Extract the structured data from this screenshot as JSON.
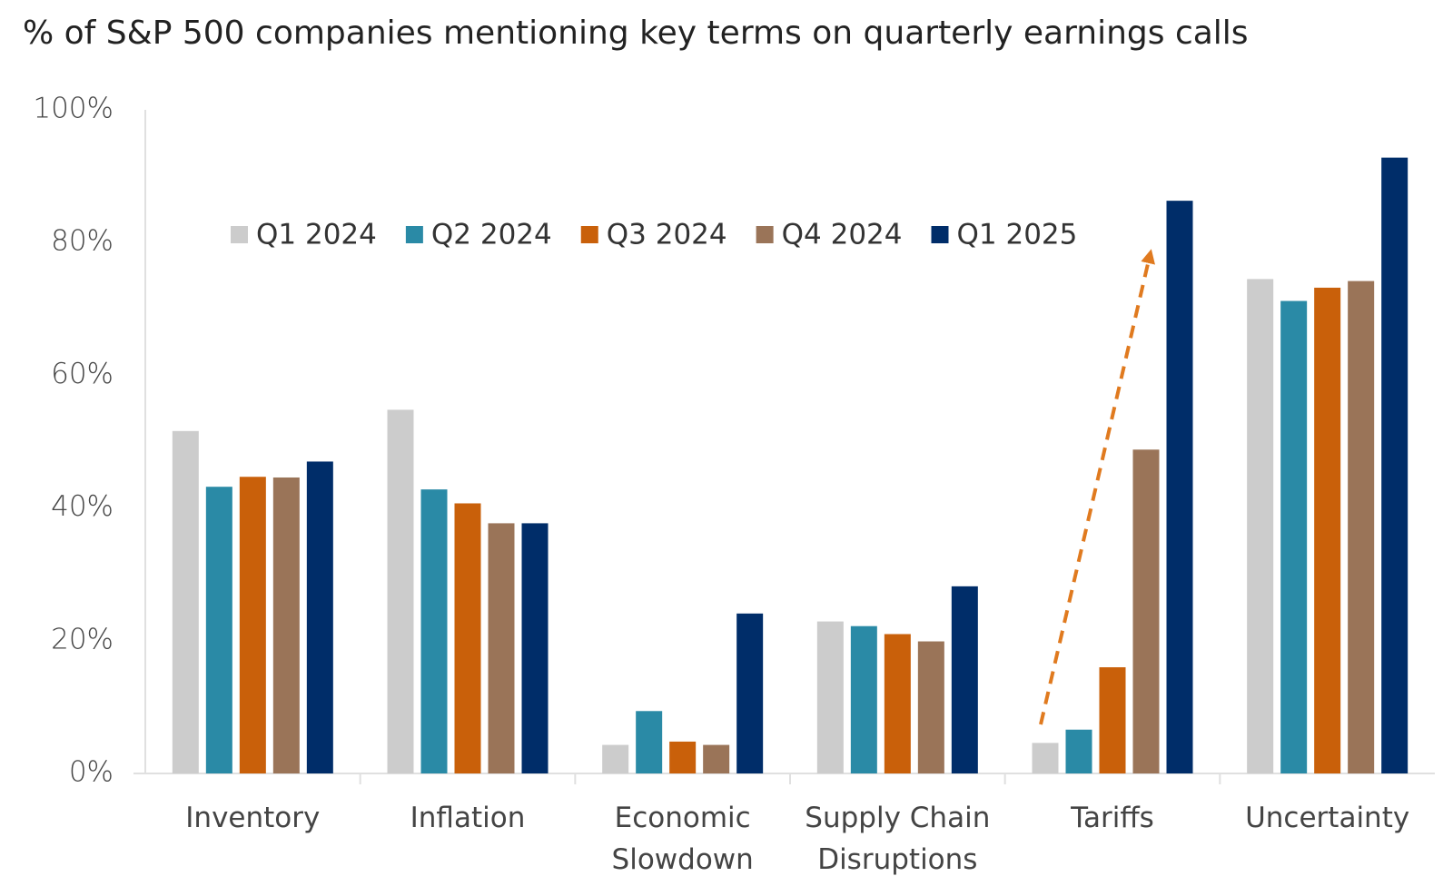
{
  "chart_data": {
    "type": "bar",
    "title": "% of S&P 500 companies mentioning key terms on quarterly earnings calls",
    "categories": [
      [
        "Inventory"
      ],
      [
        "Inflation"
      ],
      [
        "Economic",
        "Slowdown"
      ],
      [
        "Supply Chain",
        "Disruptions"
      ],
      [
        "Tariffs"
      ],
      [
        "Uncertainty"
      ]
    ],
    "series": [
      {
        "name": "Q1 2024",
        "color": "#cccccc",
        "values": [
          51.6,
          54.8,
          4.3,
          22.9,
          4.6,
          74.5
        ]
      },
      {
        "name": "Q2 2024",
        "color": "#2a8aa6",
        "values": [
          43.2,
          42.8,
          9.4,
          22.2,
          6.6,
          71.2
        ]
      },
      {
        "name": "Q3 2024",
        "color": "#c9600a",
        "values": [
          44.7,
          40.7,
          4.8,
          21.0,
          16.0,
          73.2
        ]
      },
      {
        "name": "Q4 2024",
        "color": "#9a7458",
        "values": [
          44.6,
          37.7,
          4.3,
          19.9,
          48.8,
          74.2
        ]
      },
      {
        "name": "Q1 2025",
        "color": "#002d69",
        "values": [
          47.0,
          37.7,
          24.1,
          28.2,
          86.3,
          92.8
        ]
      }
    ],
    "ylim": [
      0,
      100
    ],
    "yticks": [
      {
        "value": 0,
        "label": "0%"
      },
      {
        "value": 20,
        "label": "20%"
      },
      {
        "value": 40,
        "label": "40%"
      },
      {
        "value": 60,
        "label": "60%"
      },
      {
        "value": 80,
        "label": "80%"
      },
      {
        "value": 100,
        "label": "100%"
      }
    ],
    "grid": false
  }
}
